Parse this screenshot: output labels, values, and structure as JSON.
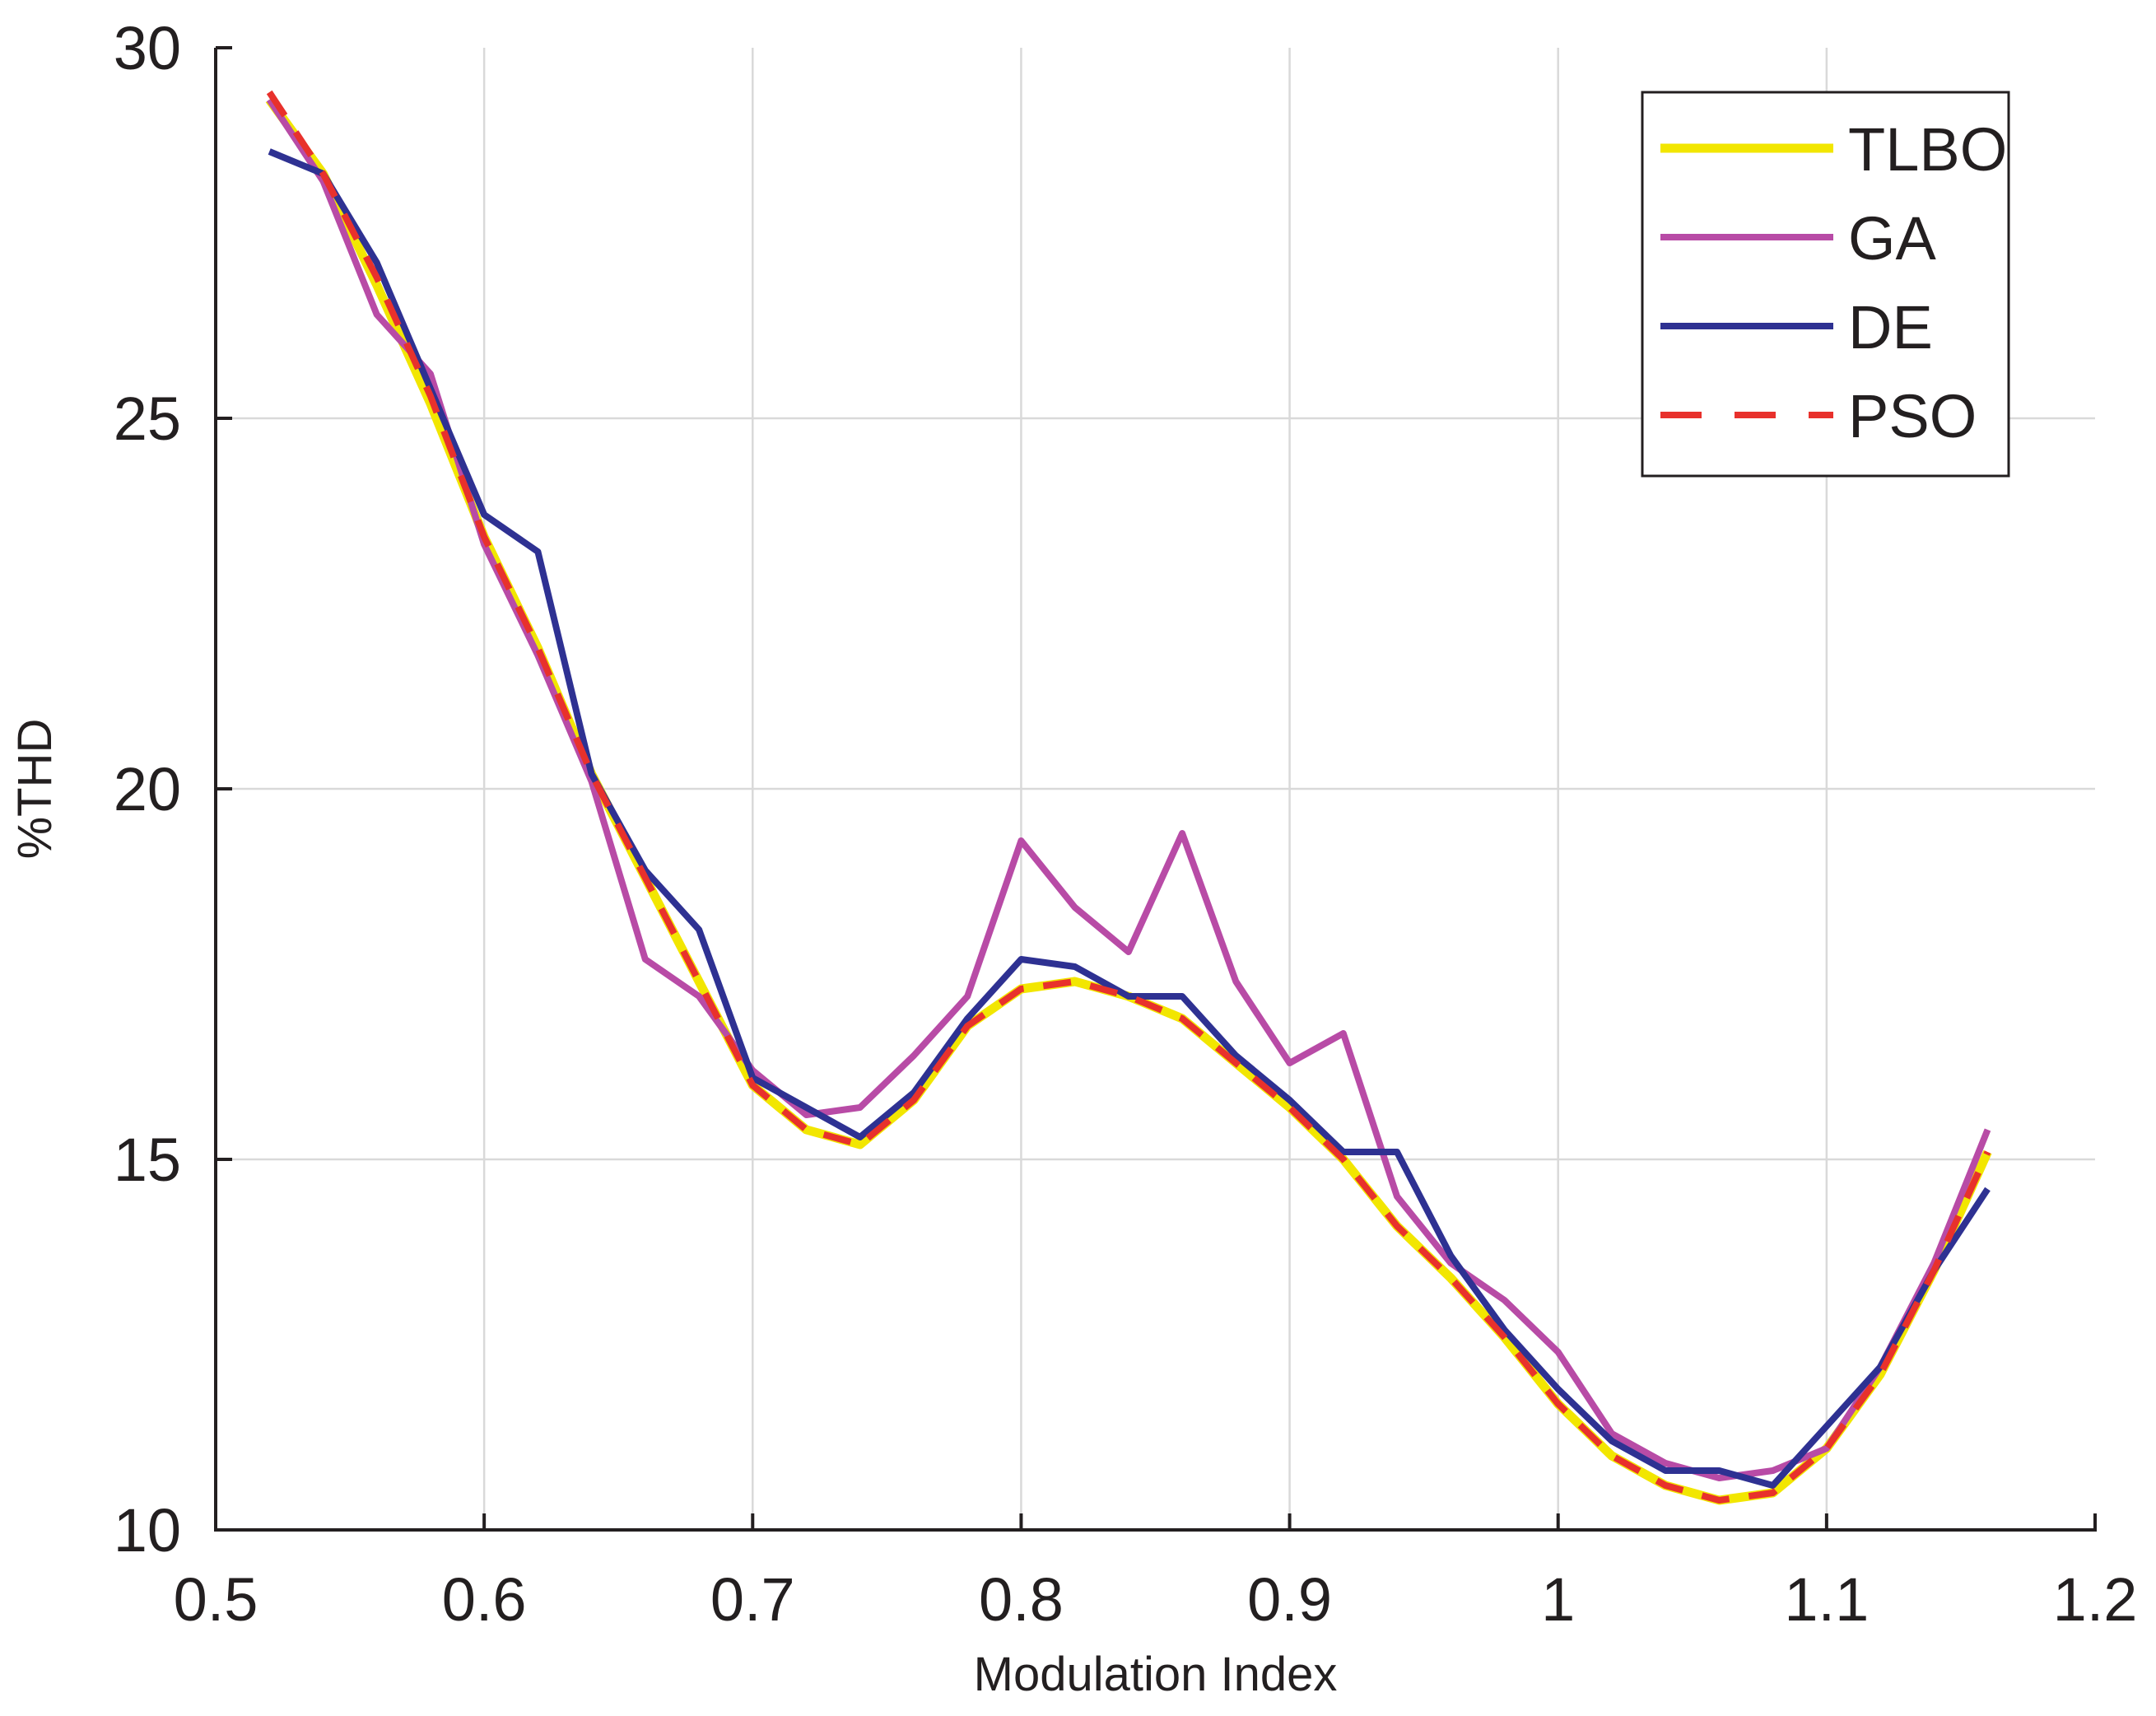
{
  "chart_data": {
    "type": "line",
    "title": "",
    "xlabel": "Modulation Index",
    "ylabel": "%THD",
    "xlim": [
      0.5,
      1.2
    ],
    "ylim": [
      10,
      30
    ],
    "xticks": [
      0.5,
      0.6,
      0.7,
      0.8,
      0.9,
      1.0,
      1.1,
      1.2
    ],
    "xtick_labels": [
      "0.5",
      "0.6",
      "0.7",
      "0.8",
      "0.9",
      "1",
      "1.1",
      "1.2"
    ],
    "yticks": [
      10,
      15,
      20,
      25,
      30
    ],
    "ytick_labels": [
      "10",
      "15",
      "20",
      "25",
      "30"
    ],
    "grid": true,
    "legend_position": "top-right",
    "x": [
      0.52,
      0.54,
      0.56,
      0.58,
      0.6,
      0.62,
      0.64,
      0.66,
      0.68,
      0.7,
      0.72,
      0.74,
      0.76,
      0.78,
      0.8,
      0.82,
      0.84,
      0.86,
      0.88,
      0.9,
      0.92,
      0.94,
      0.96,
      0.98,
      1.0,
      1.02,
      1.04,
      1.06,
      1.08,
      1.1,
      1.12,
      1.14,
      1.16
    ],
    "series": [
      {
        "name": "TLBO",
        "color": "#f2e600",
        "style": "solid",
        "values": [
          29.3,
          28.3,
          26.8,
          25.2,
          23.4,
          21.9,
          20.2,
          18.8,
          17.4,
          16.0,
          15.4,
          15.2,
          15.8,
          16.8,
          17.3,
          17.4,
          17.2,
          16.9,
          16.3,
          15.7,
          15.0,
          14.1,
          13.4,
          12.6,
          11.7,
          11.0,
          10.6,
          10.4,
          10.5,
          11.1,
          12.1,
          13.5,
          15.1
        ]
      },
      {
        "name": "GA",
        "color": "#b84ba6",
        "style": "solid",
        "values": [
          29.3,
          28.2,
          26.4,
          25.6,
          23.3,
          21.8,
          20.1,
          17.7,
          17.2,
          16.2,
          15.6,
          15.7,
          16.4,
          17.2,
          19.3,
          18.4,
          17.8,
          19.4,
          17.4,
          16.3,
          16.7,
          14.5,
          13.6,
          13.1,
          12.4,
          11.3,
          10.9,
          10.7,
          10.8,
          11.1,
          12.2,
          13.6,
          15.4
        ]
      },
      {
        "name": "DE",
        "color": "#2e3192",
        "style": "solid",
        "values": [
          28.6,
          28.3,
          27.1,
          25.4,
          23.7,
          23.2,
          20.2,
          18.9,
          18.1,
          16.1,
          15.7,
          15.3,
          15.9,
          16.9,
          17.7,
          17.6,
          17.2,
          17.2,
          16.4,
          15.8,
          15.1,
          15.1,
          13.7,
          12.7,
          11.9,
          11.2,
          10.8,
          10.8,
          10.6,
          11.4,
          12.2,
          13.5,
          14.6
        ]
      },
      {
        "name": "PSO",
        "color": "#e8312c",
        "style": "dashed",
        "values": [
          29.4,
          28.3,
          26.9,
          25.3,
          23.4,
          21.9,
          20.2,
          18.8,
          17.4,
          16.0,
          15.4,
          15.2,
          15.8,
          16.8,
          17.3,
          17.4,
          17.2,
          16.9,
          16.3,
          15.7,
          15.0,
          14.1,
          13.4,
          12.6,
          11.7,
          11.0,
          10.6,
          10.4,
          10.5,
          11.1,
          12.1,
          13.5,
          15.1
        ]
      }
    ]
  }
}
